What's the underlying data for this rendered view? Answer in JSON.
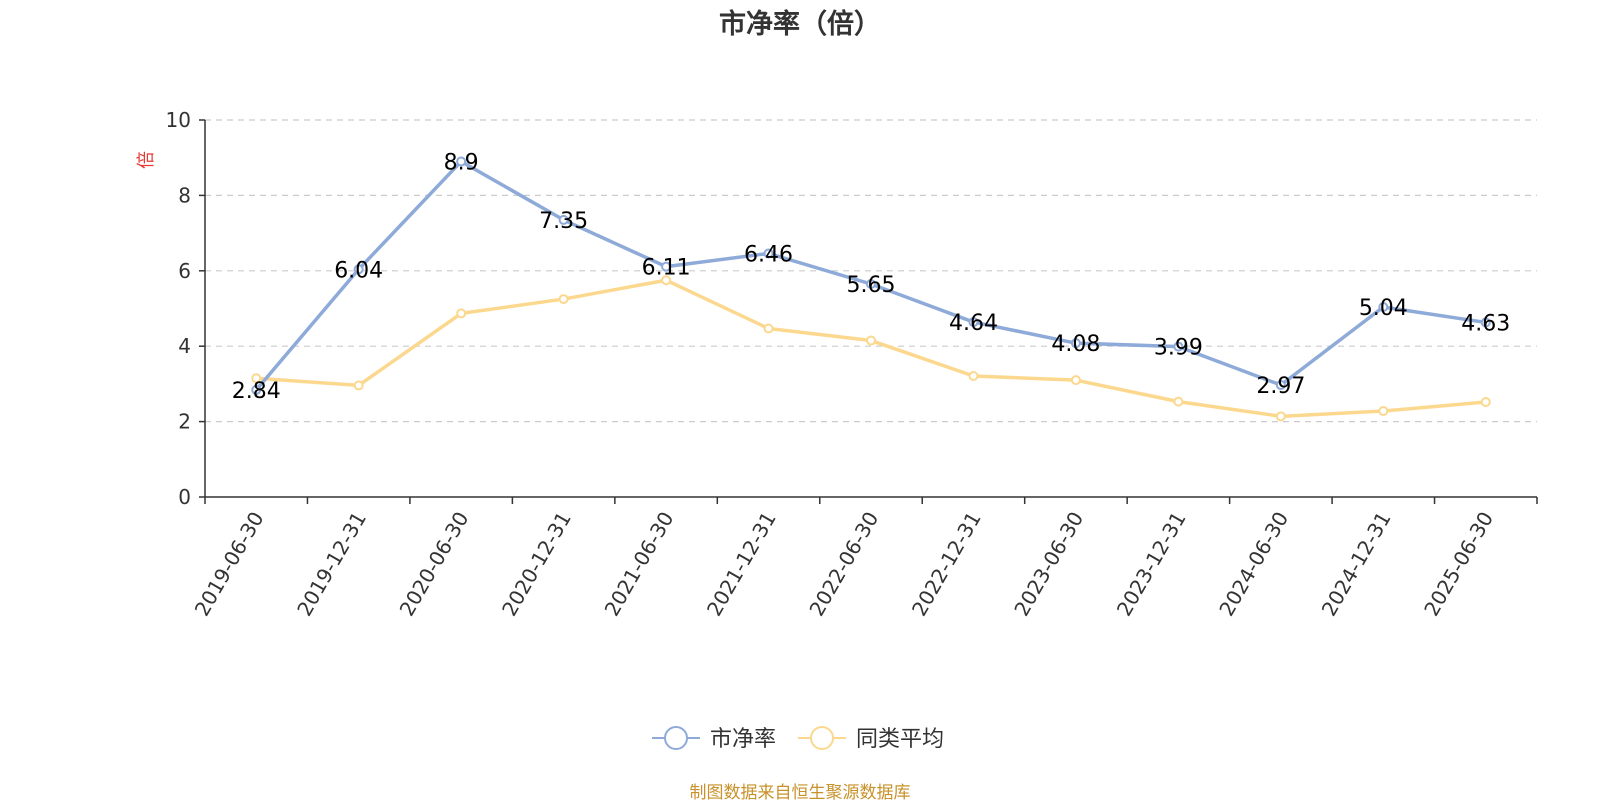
{
  "chart_data": {
    "type": "line",
    "title": "市净率（倍）",
    "ylabel": "倍",
    "xlabel": "",
    "ylim": [
      0,
      10
    ],
    "yticks": [
      0,
      2,
      4,
      6,
      8,
      10
    ],
    "grid": true,
    "legend_position": "bottom-center",
    "categories": [
      "2019-06-30",
      "2019-12-31",
      "2020-06-30",
      "2020-12-31",
      "2021-06-30",
      "2021-12-31",
      "2022-06-30",
      "2022-12-31",
      "2023-06-30",
      "2023-12-31",
      "2024-06-30",
      "2024-12-31",
      "2025-06-30"
    ],
    "series": [
      {
        "name": "市净率",
        "color": "#8eaad8",
        "show_labels": true,
        "values": [
          2.84,
          6.04,
          8.9,
          7.35,
          6.11,
          6.46,
          5.65,
          4.64,
          4.08,
          3.99,
          2.97,
          5.04,
          4.63
        ]
      },
      {
        "name": "同类平均",
        "color": "#fbd88e",
        "show_labels": false,
        "values": [
          3.15,
          2.96,
          4.87,
          5.25,
          5.75,
          4.47,
          4.15,
          3.21,
          3.1,
          2.53,
          2.14,
          2.28,
          2.52
        ]
      }
    ],
    "footer": "制图数据来自恒生聚源数据库",
    "colors": {
      "axis": "#333333",
      "grid": "#cccccc",
      "unit_label": "#e53935",
      "footer": "#c8922a"
    }
  }
}
